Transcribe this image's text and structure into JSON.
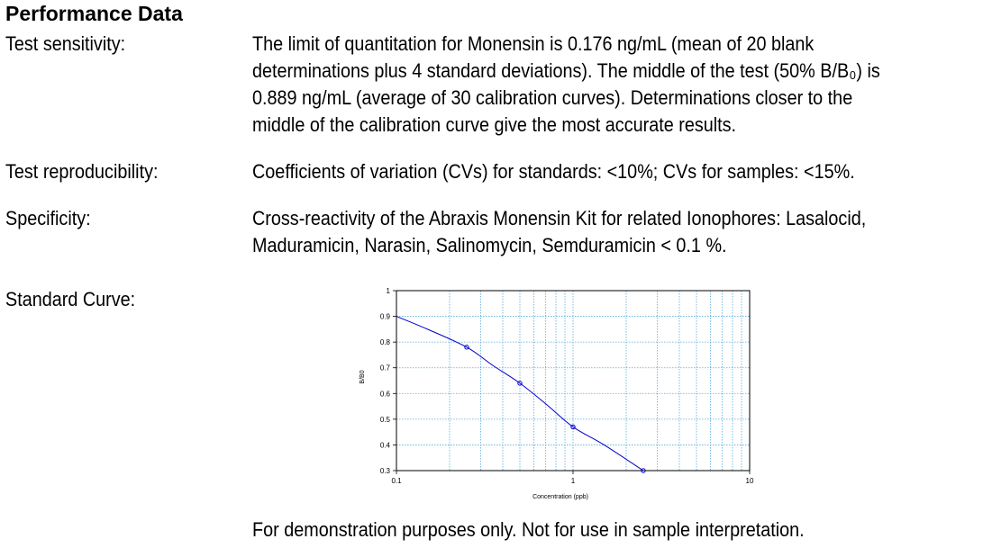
{
  "heading": "Performance Data",
  "sections": [
    {
      "label": "Test sensitivity:",
      "lines": [
        "The limit of quantitation for Monensin is 0.176 ng/mL (mean of 20 blank",
        "determinations plus 4 standard deviations).  The middle of the test (50% B/B₀) is",
        "0.889 ng/mL (average of 30 calibration curves).  Determinations closer to the",
        "middle of the calibration curve give the most accurate results."
      ]
    },
    {
      "label": "Test reproducibility:",
      "lines": [
        "Coefficients of variation (CVs) for standards: <10%; CVs for samples: <15%."
      ]
    },
    {
      "label": "Specificity:",
      "lines": [
        "Cross-reactivity of the Abraxis Monensin Kit for related Ionophores:  Lasalocid,",
        "Maduramicin, Narasin, Salinomycin, Semduramicin < 0.1 %."
      ]
    },
    {
      "label": "Standard Curve:",
      "lines": []
    }
  ],
  "caption": "For demonstration purposes only.  Not for use in sample interpretation.",
  "chart_data": {
    "type": "line",
    "xlabel": "Concentration (ppb)",
    "ylabel": "B/B0",
    "xscale": "log",
    "xlim": [
      0.1,
      10
    ],
    "ylim": [
      0.3,
      1
    ],
    "x_ticks": [
      "0.1",
      "1",
      "10"
    ],
    "y_ticks": [
      "0.3",
      "0.4",
      "0.5",
      "0.6",
      "0.7",
      "0.8",
      "0.9",
      "1"
    ],
    "grid": true,
    "curve": {
      "x": [
        0.1,
        0.15,
        0.25,
        0.35,
        0.5,
        0.7,
        1,
        1.5,
        2.5
      ],
      "y": [
        0.9,
        0.85,
        0.78,
        0.71,
        0.64,
        0.56,
        0.47,
        0.4,
        0.3
      ]
    },
    "points": {
      "x": [
        0.25,
        0.5,
        1,
        2.5
      ],
      "y": [
        0.78,
        0.64,
        0.47,
        0.3
      ]
    },
    "colors": {
      "curve": "#0000cc",
      "grid": "#55aadd",
      "frame": "#000000"
    }
  }
}
